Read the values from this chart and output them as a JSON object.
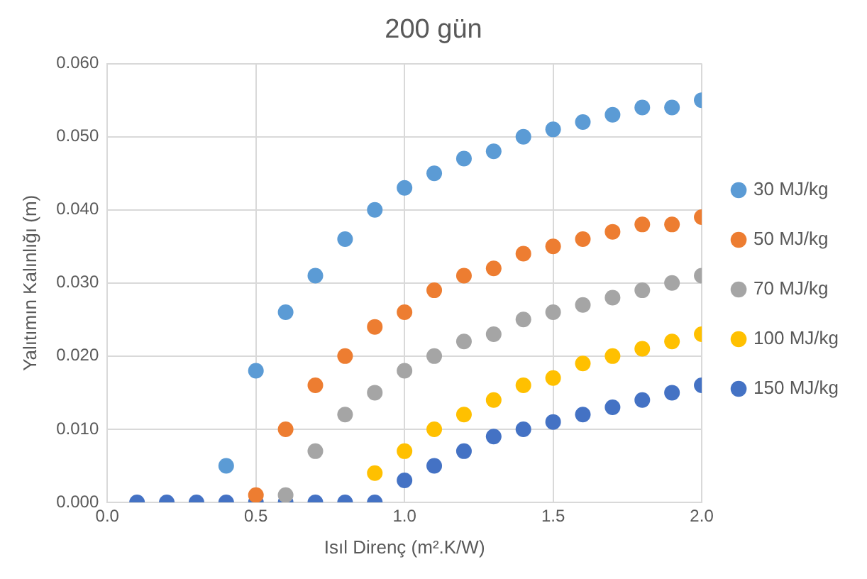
{
  "chart_data": {
    "type": "scatter",
    "title": "200 gün",
    "xlabel": "Isıl Direnç (m².K/W)",
    "ylabel": "Yalıtımın Kalınlığı (m)",
    "x": [
      0.1,
      0.2,
      0.3,
      0.4,
      0.5,
      0.6,
      0.7,
      0.8,
      0.9,
      1.0,
      1.1,
      1.2,
      1.3,
      1.4,
      1.5,
      1.6,
      1.7,
      1.8,
      1.9,
      2.0
    ],
    "series": [
      {
        "name": "30 MJ/kg",
        "color": "#5b9bd5",
        "values": [
          null,
          null,
          null,
          0.005,
          0.018,
          0.026,
          0.031,
          0.036,
          0.04,
          0.043,
          0.045,
          0.047,
          0.048,
          0.05,
          0.051,
          0.052,
          0.053,
          0.054,
          0.054,
          0.055
        ]
      },
      {
        "name": "50 MJ/kg",
        "color": "#ed7d31",
        "values": [
          null,
          null,
          null,
          null,
          0.001,
          0.01,
          0.016,
          0.02,
          0.024,
          0.026,
          0.029,
          0.031,
          0.032,
          0.034,
          0.035,
          0.036,
          0.037,
          0.038,
          0.038,
          0.039
        ]
      },
      {
        "name": "70 MJ/kg",
        "color": "#a5a5a5",
        "values": [
          null,
          null,
          null,
          null,
          null,
          0.001,
          0.007,
          0.012,
          0.015,
          0.018,
          0.02,
          0.022,
          0.023,
          0.025,
          0.026,
          0.027,
          0.028,
          0.029,
          0.03,
          0.031
        ]
      },
      {
        "name": "100 MJ/kg",
        "color": "#ffc000",
        "values": [
          null,
          null,
          null,
          null,
          null,
          null,
          null,
          null,
          0.004,
          0.007,
          0.01,
          0.012,
          0.014,
          0.016,
          0.017,
          0.019,
          0.02,
          0.021,
          0.022,
          0.023
        ]
      },
      {
        "name": "150 MJ/kg",
        "color": "#4472c4",
        "values": [
          0,
          0,
          0,
          0,
          0,
          0,
          0,
          0,
          0,
          0.003,
          0.005,
          0.007,
          0.009,
          0.01,
          0.011,
          0.012,
          0.013,
          0.014,
          0.015,
          0.016
        ]
      }
    ],
    "xlim": [
      0,
      2
    ],
    "xticks": [
      {
        "value": 0,
        "label": "0.0"
      },
      {
        "value": 0.5,
        "label": "0.5"
      },
      {
        "value": 1,
        "label": "1.0"
      },
      {
        "value": 1.5,
        "label": "1.5"
      },
      {
        "value": 2,
        "label": "2.0"
      }
    ],
    "ylim": [
      0,
      0.06
    ],
    "yticks": [
      {
        "value": 0,
        "label": "0.000"
      },
      {
        "value": 0.01,
        "label": "0.010"
      },
      {
        "value": 0.02,
        "label": "0.020"
      },
      {
        "value": 0.03,
        "label": "0.030"
      },
      {
        "value": 0.04,
        "label": "0.040"
      },
      {
        "value": 0.05,
        "label": "0.050"
      },
      {
        "value": 0.06,
        "label": "0.060"
      }
    ],
    "grid": true,
    "legend": "right",
    "marker": "circle"
  }
}
